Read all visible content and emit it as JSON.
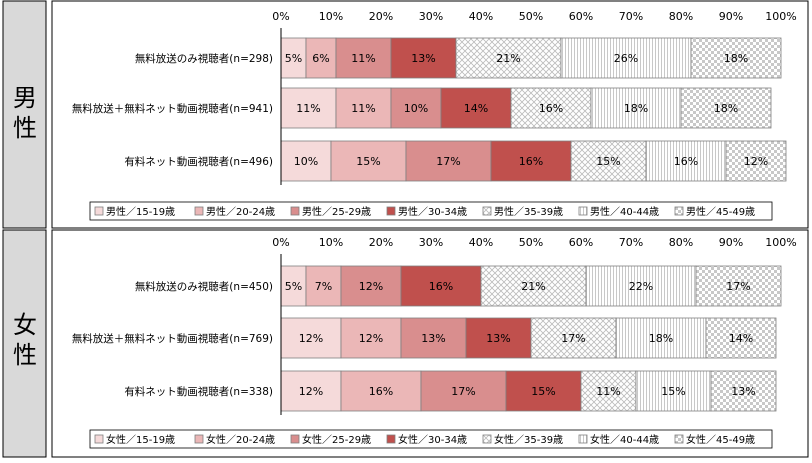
{
  "colors": {
    "c15_19": "#f5dada",
    "c20_24": "#ebb7b7",
    "c25_29": "#d98e8e",
    "c30_34": "#c0504d",
    "pattern_stroke": "#bbbbbb",
    "panel_label_bg": "#d9d9d9"
  },
  "chart_data": [
    {
      "type": "bar",
      "orientation": "horizontal-stacked-100",
      "panel_label": "男性",
      "axis_ticks": [
        "0%",
        "10%",
        "20%",
        "30%",
        "40%",
        "50%",
        "60%",
        "70%",
        "80%",
        "90%",
        "100%"
      ],
      "xlim": [
        0,
        100
      ],
      "categories": [
        "無料放送のみ視聴者(n=298)",
        "無料放送＋無料ネット動画視聴者(n=941)",
        "有料ネット動画視聴者(n=496)"
      ],
      "series": [
        {
          "name": "男性／15-19歳",
          "pattern": "solid-lightest",
          "values": [
            5,
            11,
            10
          ]
        },
        {
          "name": "男性／20-24歳",
          "pattern": "solid-light",
          "values": [
            6,
            11,
            15
          ]
        },
        {
          "name": "男性／25-29歳",
          "pattern": "solid-medium",
          "values": [
            11,
            10,
            17
          ]
        },
        {
          "name": "男性／30-34歳",
          "pattern": "solid-dark",
          "values": [
            13,
            14,
            16
          ]
        },
        {
          "name": "男性／35-39歳",
          "pattern": "crosshatch",
          "values": [
            21,
            16,
            15
          ]
        },
        {
          "name": "男性／40-44歳",
          "pattern": "vertical-lines",
          "values": [
            26,
            18,
            16
          ]
        },
        {
          "name": "男性／45-49歳",
          "pattern": "checker",
          "values": [
            18,
            18,
            12
          ]
        }
      ],
      "legend_position": "bottom"
    },
    {
      "type": "bar",
      "orientation": "horizontal-stacked-100",
      "panel_label": "女性",
      "axis_ticks": [
        "0%",
        "10%",
        "20%",
        "30%",
        "40%",
        "50%",
        "60%",
        "70%",
        "80%",
        "90%",
        "100%"
      ],
      "xlim": [
        0,
        100
      ],
      "categories": [
        "無料放送のみ視聴者(n=450)",
        "無料放送＋無料ネット動画視聴者(n=769)",
        "有料ネット動画視聴者(n=338)"
      ],
      "series": [
        {
          "name": "女性／15-19歳",
          "pattern": "solid-lightest",
          "values": [
            5,
            12,
            12
          ]
        },
        {
          "name": "女性／20-24歳",
          "pattern": "solid-light",
          "values": [
            7,
            12,
            16
          ]
        },
        {
          "name": "女性／25-29歳",
          "pattern": "solid-medium",
          "values": [
            12,
            13,
            17
          ]
        },
        {
          "name": "女性／30-34歳",
          "pattern": "solid-dark",
          "values": [
            16,
            13,
            15
          ]
        },
        {
          "name": "女性／35-39歳",
          "pattern": "crosshatch",
          "values": [
            21,
            17,
            11
          ]
        },
        {
          "name": "女性／40-44歳",
          "pattern": "vertical-lines",
          "values": [
            22,
            18,
            15
          ]
        },
        {
          "name": "女性／45-49歳",
          "pattern": "checker",
          "values": [
            17,
            14,
            13
          ]
        }
      ],
      "legend_position": "bottom"
    }
  ]
}
